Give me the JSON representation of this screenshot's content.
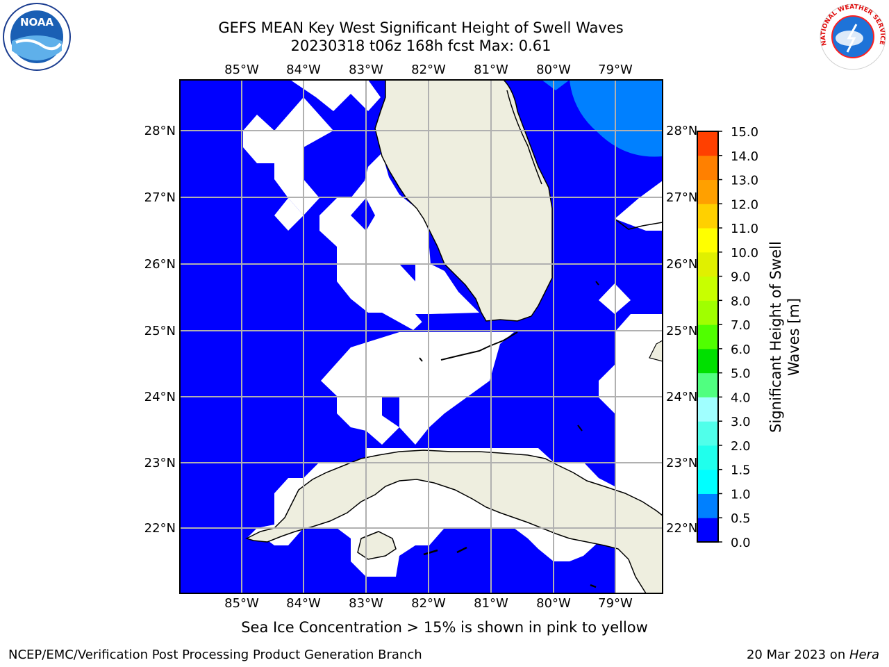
{
  "header": {
    "title_line1": "GEFS MEAN Key West Significant Height of Swell Waves",
    "title_line2": "20230318 t06z 168h fcst   Max: 0.61"
  },
  "map": {
    "lon_ticks": [
      "85°W",
      "84°W",
      "83°W",
      "82°W",
      "81°W",
      "80°W",
      "79°W"
    ],
    "lat_ticks": [
      "28°N",
      "27°N",
      "26°N",
      "25°N",
      "24°N",
      "23°N",
      "22°N"
    ],
    "colors": {
      "ocean_low": "#0000ff",
      "ocean_mid": "#0080ff",
      "land": "#eeeedf",
      "grid": "#b0b0b0"
    }
  },
  "colorbar": {
    "label_line1": "Significant Height of Swell",
    "label_line2": "Waves [m]",
    "ticks": [
      "0.0",
      "0.5",
      "1.0",
      "1.5",
      "2.0",
      "3.0",
      "4.0",
      "5.0",
      "6.0",
      "7.0",
      "8.0",
      "9.0",
      "10.0",
      "11.0",
      "12.0",
      "13.0",
      "14.0",
      "15.0"
    ],
    "colors": [
      "#0000ff",
      "#0080ff",
      "#00ffff",
      "#20ffec",
      "#50ffea",
      "#a0ffff",
      "#50ff80",
      "#00e000",
      "#50ff00",
      "#a0ff00",
      "#c8ff00",
      "#e0f000",
      "#ffff00",
      "#ffd000",
      "#ffa000",
      "#ff8000",
      "#ff4000",
      "#ff0000"
    ]
  },
  "note": "Sea Ice Concentration > 15% is shown in pink to yellow",
  "footer": {
    "left": "NCEP/EMC/Verification Post Processing Product Generation Branch",
    "right_prefix": "20 Mar 2023 on ",
    "right_host": "Hera"
  },
  "logos": {
    "noaa_text": "NOAA",
    "nws_text": "NATIONAL WEATHER SERVICE"
  }
}
